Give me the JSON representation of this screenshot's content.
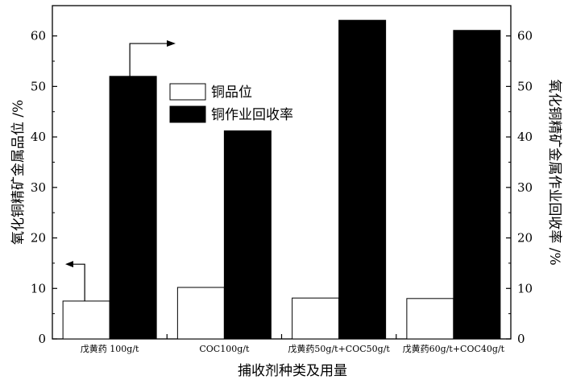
{
  "chart_data": {
    "type": "bar",
    "categories": [
      "戊黄药 100g/t",
      "COC100g/t",
      "戊黄药50g/t+COC50g/t",
      "戊黄药60g/t+COC40g/t"
    ],
    "series": [
      {
        "name": "铜品位",
        "values": [
          7.5,
          10.2,
          8.1,
          8.0
        ],
        "color": "#ffffff",
        "axis": "left"
      },
      {
        "name": "铜作业回收率",
        "values": [
          52.0,
          41.2,
          63.1,
          61.1
        ],
        "color": "#000000",
        "axis": "right"
      }
    ],
    "xlabel": "捕收剂种类及用量",
    "ylabel_left": "氧化铜精矿金属品位 /%",
    "ylabel_right": "氧化铜精矿金属作业回收率 /%",
    "ylim": [
      0,
      66
    ],
    "yticks": [
      0,
      10,
      20,
      30,
      40,
      50,
      60
    ],
    "legend_position": "upper-center",
    "grid": false
  }
}
